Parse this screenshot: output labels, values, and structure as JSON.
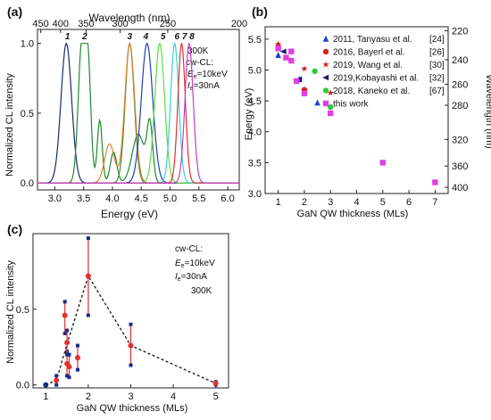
{
  "panels": {
    "a": {
      "label": "(a)"
    },
    "b": {
      "label": "(b)"
    },
    "c": {
      "label": "(c)"
    }
  },
  "colors": {
    "axis": "#222222",
    "a_curves": [
      "#1a2a6c",
      "#1f8a2e",
      "#3f8f3a",
      "#d9822b",
      "#1f3fb3",
      "#5bdc3a",
      "#2fd6d0",
      "#e0302f",
      "#c63cc6"
    ],
    "a_peak_labels": [
      "#1a2a6c",
      "#1f6f6a",
      "#d9822b",
      "#1f3fb3",
      "#5bdc3a",
      "#2fd6d0",
      "#e0302f",
      "#c63cc6"
    ],
    "b_series": [
      "#1f3fd8",
      "#d82020",
      "#c81e1e",
      "#1a1a6a",
      "#2ecc3a",
      "#e040e0"
    ],
    "c_points": "#1a2a8c",
    "c_error": "#e03030",
    "c_line": "#222222"
  },
  "chart_data": [
    {
      "panel": "a",
      "type": "line",
      "xlabel": "Energy (eV)",
      "ylabel": "Normalized CL intensity",
      "top_axis_label": "Wavelength (nm)",
      "top_ticks": [
        "450",
        "400",
        "350",
        "300",
        "250",
        "200"
      ],
      "top_tick_nm": [
        450,
        400,
        350,
        300,
        250,
        200
      ],
      "xlim": [
        2.7,
        6.2
      ],
      "ylim": [
        -0.05,
        1.1
      ],
      "x_ticks": [
        "3.0",
        "3.5",
        "4.0",
        "4.5",
        "5.0",
        "5.5",
        "6.0"
      ],
      "y_ticks": [
        "0.0",
        "0.5",
        "1.0"
      ],
      "annotations": [
        "300K",
        "cw-CL:",
        "E",
        "e",
        "=10keV",
        "I",
        "e",
        "=30nA"
      ],
      "peak_labels": [
        "1",
        "2",
        "3",
        "4",
        "5",
        "6",
        "7",
        "8"
      ],
      "peak_label_x": [
        3.22,
        3.52,
        4.3,
        4.58,
        4.88,
        5.12,
        5.25,
        5.38
      ],
      "series": [
        {
          "peaks": [
            [
              3.2,
              1.0,
              0.13
            ]
          ],
          "baseline": 0.0
        },
        {
          "peaks": [
            [
              3.47,
              1.0,
              0.09
            ],
            [
              3.58,
              0.75,
              0.07
            ],
            [
              3.78,
              0.45,
              0.06
            ],
            [
              4.02,
              0.22,
              0.08
            ],
            [
              4.45,
              0.35,
              0.15
            ],
            [
              4.65,
              0.4,
              0.07
            ]
          ],
          "baseline": 0.05
        },
        {
          "peaks": [
            [
              4.3,
              1.0,
              0.11
            ]
          ],
          "baseline": 0.0,
          "notes": "peak 3"
        },
        {
          "peaks": [
            [
              3.95,
              0.28,
              0.12
            ],
            [
              4.3,
              1.0,
              0.12
            ]
          ],
          "baseline": 0.0
        },
        {
          "peaks": [
            [
              4.6,
              1.0,
              0.14
            ]
          ],
          "baseline": 0.0
        },
        {
          "peaks": [
            [
              4.82,
              1.0,
              0.12
            ]
          ],
          "baseline": 0.0
        },
        {
          "peaks": [
            [
              5.08,
              1.0,
              0.1
            ]
          ],
          "baseline": 0.0
        },
        {
          "peaks": [
            [
              5.2,
              1.0,
              0.09
            ]
          ],
          "baseline": 0.0
        },
        {
          "peaks": [
            [
              5.33,
              1.0,
              0.1
            ]
          ],
          "baseline": 0.0
        }
      ]
    },
    {
      "panel": "b",
      "type": "scatter",
      "xlabel": "GaN QW thickness (MLs)",
      "ylabel": "Energy (eV)",
      "right_ylabel": "Wavelength (nm)",
      "xlim": [
        0.5,
        7.5
      ],
      "ylim": [
        3.0,
        5.7
      ],
      "x_ticks": [
        "1",
        "2",
        "3",
        "4",
        "5",
        "6",
        "7"
      ],
      "y_ticks": [
        "3.0",
        "3.5",
        "4.0",
        "4.5",
        "5.0",
        "5.5"
      ],
      "right_ticks": [
        "220",
        "240",
        "260",
        "280",
        "320",
        "360",
        "400"
      ],
      "right_tick_nm": [
        220,
        240,
        260,
        280,
        320,
        360,
        400
      ],
      "series": [
        {
          "name": "2011, Tanyasu et al.",
          "ref": "[24]",
          "marker": "triangle-up",
          "x": [
            1,
            1.8,
            2.5
          ],
          "y": [
            5.24,
            4.85,
            4.47
          ]
        },
        {
          "name": "2016, Bayerl et al.",
          "ref": "[26]",
          "marker": "circle",
          "x": [
            1,
            2
          ],
          "y": [
            5.38,
            4.68
          ]
        },
        {
          "name": "2019, Wang et al.",
          "ref": "[30]",
          "marker": "star",
          "x": [
            1,
            2,
            3
          ],
          "y": [
            5.42,
            5.02,
            4.63
          ]
        },
        {
          "name": "2019,Kobayashi et al.",
          "ref": "[32]",
          "marker": "triangle-left",
          "x": [
            1.2,
            1.8
          ],
          "y": [
            5.3,
            4.85
          ]
        },
        {
          "name": "2018, Kaneko et al.",
          "ref": "[67]",
          "marker": "circle",
          "x": [
            2.4,
            3
          ],
          "y": [
            4.98,
            4.4
          ]
        },
        {
          "name": "this work",
          "ref": "",
          "marker": "square",
          "x": [
            1,
            1.3,
            1.5,
            1.5,
            1.7,
            2,
            3,
            5,
            7
          ],
          "y": [
            5.35,
            5.2,
            5.3,
            5.15,
            4.82,
            4.62,
            4.3,
            3.5,
            3.18
          ]
        }
      ]
    },
    {
      "panel": "c",
      "type": "line",
      "xlabel": "GaN QW thickness (MLs)",
      "ylabel": "Normalized  CL intensity",
      "xlim": [
        0.7,
        5.3
      ],
      "ylim": [
        -0.02,
        1.0
      ],
      "x_ticks": [
        "1",
        "2",
        "3",
        "4",
        "5"
      ],
      "y_ticks": [
        "0.0",
        "0.5"
      ],
      "annotations": [
        "cw-CL:",
        "E",
        "e",
        "=10keV",
        "I",
        "e",
        "=30nA",
        "300K"
      ],
      "line_x": [
        1,
        1.25,
        1.5,
        2,
        3,
        5
      ],
      "line_y": [
        0.0,
        0.03,
        0.27,
        0.72,
        0.26,
        0.01
      ],
      "points": [
        {
          "x": 1.0,
          "y": 0.0,
          "lo": 0.0,
          "hi": 0.0
        },
        {
          "x": 1.25,
          "y": 0.03,
          "lo": 0.0,
          "hi": 0.06
        },
        {
          "x": 1.45,
          "y": 0.46,
          "lo": 0.34,
          "hi": 0.55
        },
        {
          "x": 1.5,
          "y": 0.14,
          "lo": 0.06,
          "hi": 0.22
        },
        {
          "x": 1.5,
          "y": 0.28,
          "lo": 0.2,
          "hi": 0.36
        },
        {
          "x": 1.55,
          "y": 0.12,
          "lo": 0.05,
          "hi": 0.2
        },
        {
          "x": 1.75,
          "y": 0.18,
          "lo": 0.1,
          "hi": 0.26
        },
        {
          "x": 2.0,
          "y": 0.72,
          "lo": 0.46,
          "hi": 0.97
        },
        {
          "x": 3.0,
          "y": 0.26,
          "lo": 0.13,
          "hi": 0.4
        },
        {
          "x": 5.0,
          "y": 0.01,
          "lo": 0.0,
          "hi": 0.02
        }
      ]
    }
  ]
}
